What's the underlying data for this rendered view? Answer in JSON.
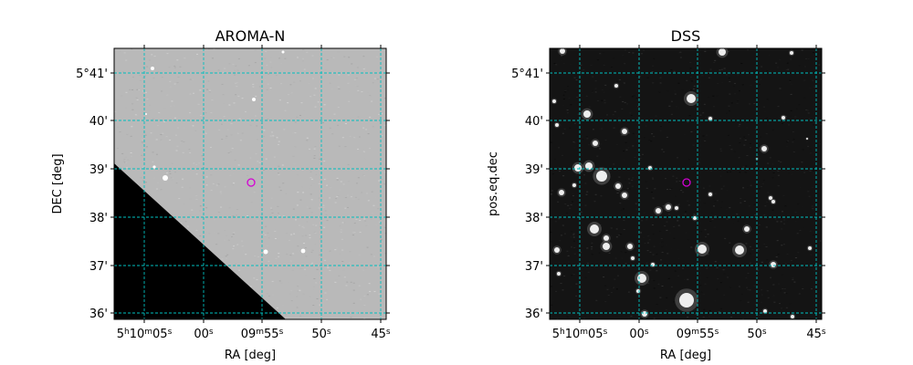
{
  "chart_data": [
    {
      "type": "image",
      "title": "AROMA-N",
      "xlabel": "RA [deg]",
      "ylabel": "DEC [deg]",
      "background": "gray-sky",
      "masked_region": "black lower-left triangle",
      "grid": true,
      "grid_color": "#00bfbf",
      "marker_color": "#d400d4",
      "x_ticks": [
        {
          "label": "5h10m05s",
          "parts": [
            [
              "5",
              0
            ],
            [
              "h",
              1
            ],
            [
              "10",
              0
            ],
            [
              "m",
              1
            ],
            [
              "05",
              0
            ],
            [
              "s",
              1
            ]
          ]
        },
        {
          "label": "00s",
          "parts": [
            [
              "00",
              0
            ],
            [
              "s",
              1
            ]
          ]
        },
        {
          "label": "09m55s",
          "parts": [
            [
              "09",
              0
            ],
            [
              "m",
              1
            ],
            [
              "55",
              0
            ],
            [
              "s",
              1
            ]
          ]
        },
        {
          "label": "50s",
          "parts": [
            [
              "50",
              0
            ],
            [
              "s",
              1
            ]
          ]
        },
        {
          "label": "45s",
          "parts": [
            [
              "45",
              0
            ],
            [
              "s",
              1
            ]
          ]
        }
      ],
      "y_ticks": [
        "5°41'",
        "40'",
        "39'",
        "38'",
        "37'",
        "36'"
      ],
      "target": {
        "ra": "5h09m56.4s",
        "dec": "5°38.7'"
      }
    },
    {
      "type": "image",
      "title": "DSS",
      "xlabel": "RA [deg]",
      "ylabel": "pos.eq.dec",
      "background": "dark-sky",
      "grid": true,
      "grid_color": "#00bfbf",
      "marker_color": "#d400d4",
      "x_ticks": [
        {
          "label": "5h10m05s",
          "parts": [
            [
              "5",
              0
            ],
            [
              "h",
              1
            ],
            [
              "10",
              0
            ],
            [
              "m",
              1
            ],
            [
              "05",
              0
            ],
            [
              "s",
              1
            ]
          ]
        },
        {
          "label": "00s",
          "parts": [
            [
              "00",
              0
            ],
            [
              "s",
              1
            ]
          ]
        },
        {
          "label": "09m55s",
          "parts": [
            [
              "09",
              0
            ],
            [
              "m",
              1
            ],
            [
              "55",
              0
            ],
            [
              "s",
              1
            ]
          ]
        },
        {
          "label": "50s",
          "parts": [
            [
              "50",
              0
            ],
            [
              "s",
              1
            ]
          ]
        },
        {
          "label": "45s",
          "parts": [
            [
              "45",
              0
            ],
            [
              "s",
              1
            ]
          ]
        }
      ],
      "y_ticks": [
        "5°41'",
        "40'",
        "39'",
        "38'",
        "37'",
        "36'"
      ],
      "target": {
        "ra": "5h09m56.4s",
        "dec": "5°38.7'"
      }
    }
  ]
}
